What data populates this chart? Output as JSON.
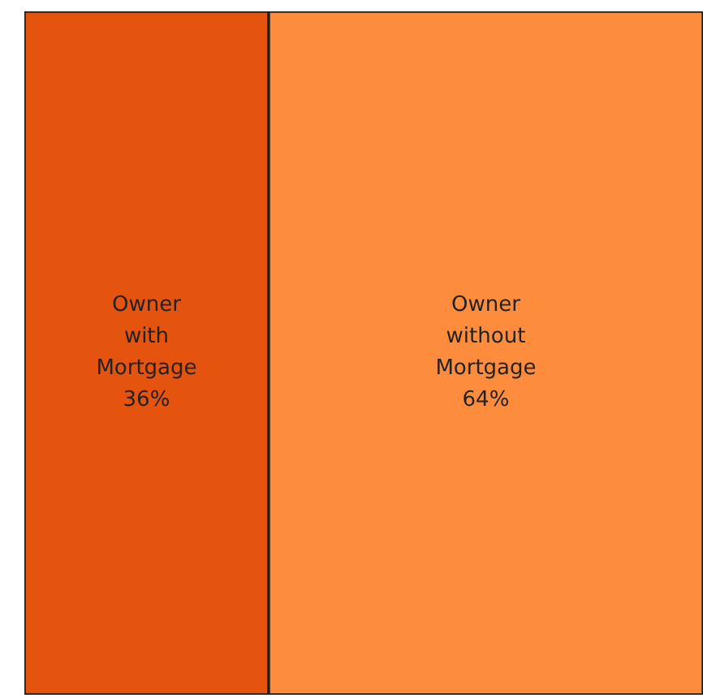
{
  "chart_data": {
    "type": "other",
    "categories": [
      "Owner with Mortgage",
      "Owner without Mortgage"
    ],
    "values": [
      36,
      64
    ],
    "colors": [
      "#e4540f",
      "#fd8d3c"
    ],
    "value_labels": [
      "36%",
      "64%"
    ]
  }
}
